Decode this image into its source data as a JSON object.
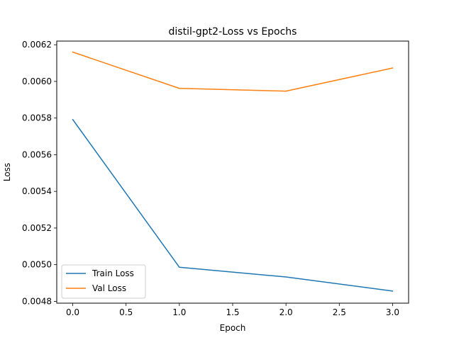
{
  "chart_data": {
    "type": "line",
    "title": "distil-gpt2-Loss vs Epochs",
    "xlabel": "Epoch",
    "ylabel": "Loss",
    "xlim": [
      -0.15,
      3.15
    ],
    "ylim": [
      0.00479,
      0.00622
    ],
    "xticks": [
      0.0,
      0.5,
      1.0,
      1.5,
      2.0,
      2.5,
      3.0
    ],
    "xtick_labels": [
      "0.0",
      "0.5",
      "1.0",
      "1.5",
      "2.0",
      "2.5",
      "3.0"
    ],
    "yticks": [
      0.0048,
      0.005,
      0.0052,
      0.0054,
      0.0056,
      0.0058,
      0.006,
      0.0062
    ],
    "ytick_labels": [
      "0.0048",
      "0.0050",
      "0.0052",
      "0.0054",
      "0.0056",
      "0.0058",
      "0.0060",
      "0.0062"
    ],
    "grid": false,
    "legend_position": "lower-left",
    "x": [
      0,
      1,
      2,
      3
    ],
    "series": [
      {
        "name": "Train Loss",
        "color": "#1f77b4",
        "values": [
          0.005792,
          0.004986,
          0.004933,
          0.004856
        ]
      },
      {
        "name": "Val Loss",
        "color": "#ff7f0e",
        "values": [
          0.00616,
          0.005962,
          0.005947,
          0.006073
        ]
      }
    ]
  }
}
